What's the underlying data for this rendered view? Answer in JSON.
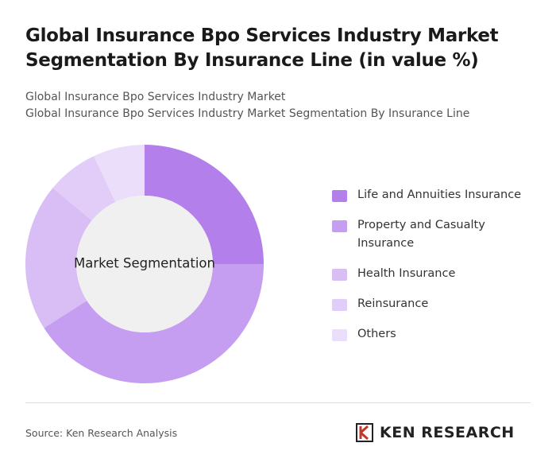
{
  "chart_data": {
    "type": "donut",
    "title": "Global Insurance Bpo Services Industry Market Segmentation By Insurance Line (in value %)",
    "subtitle": "Global Insurance Bpo Services Industry Market",
    "subtitle2": "Global Insurance Bpo Services Industry Market Segmentation By Insurance Line",
    "center_label": "Market Segmentation",
    "categories": [
      "Life and Annuities Insurance",
      "Property and Casualty Insurance",
      "Health Insurance",
      "Reinsurance",
      "Others"
    ],
    "values": [
      25,
      41,
      20,
      7,
      7
    ],
    "colors": [
      "#b37feb",
      "#c59df1",
      "#d9bef5",
      "#e2cdf8",
      "#ebdefa"
    ]
  },
  "source": "Source: Ken Research Analysis",
  "logo": "KEN RESEARCH"
}
